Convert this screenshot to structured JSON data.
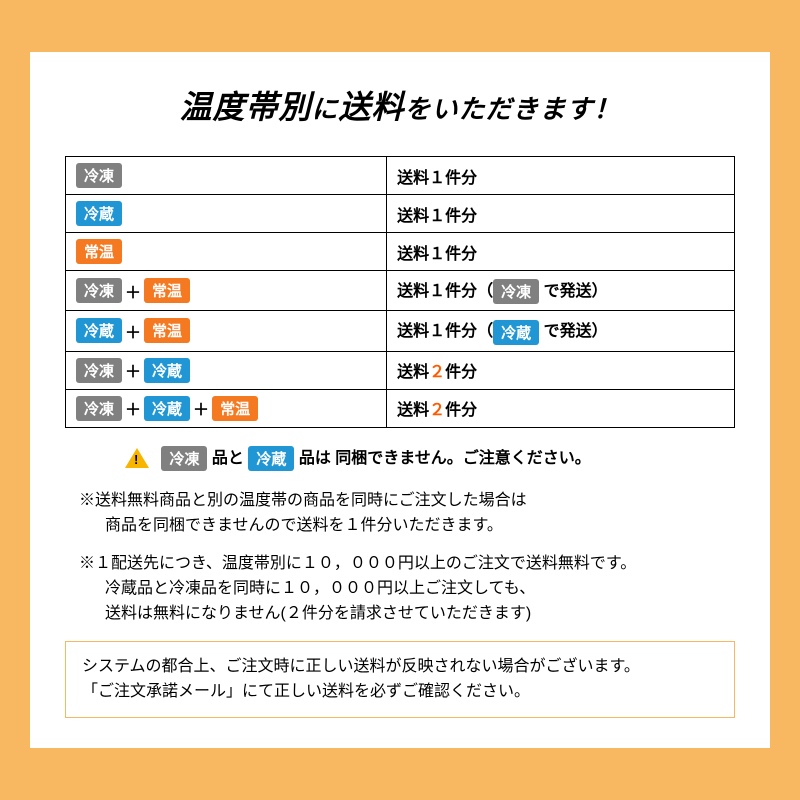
{
  "colors": {
    "page_bg": "#f8b862",
    "panel_bg": "#ffffff",
    "tag_gray": "#808080",
    "tag_blue": "#2196d4",
    "tag_orange": "#f47920",
    "count_red": "#ff5a00",
    "border": "#000000",
    "box_border": "#f8b862",
    "warn_triangle": "#f8b500"
  },
  "title": {
    "seg1": "温度帯別",
    "seg2": "に",
    "seg3": "送料",
    "seg4": "をいただきます！"
  },
  "tags": {
    "frozen": "冷凍",
    "chilled": "冷蔵",
    "ambient": "常温"
  },
  "table": {
    "plus": "＋",
    "rows": [
      {
        "l": [
          "gray"
        ],
        "r": "送料１件分"
      },
      {
        "l": [
          "blue"
        ],
        "r": "送料１件分"
      },
      {
        "l": [
          "orange"
        ],
        "r": "送料１件分"
      },
      {
        "l": [
          "gray",
          "orange"
        ],
        "r1": "送料１件分（",
        "rt": "gray",
        "r2": " で発送）"
      },
      {
        "l": [
          "blue",
          "orange"
        ],
        "r1": "送料１件分（",
        "rt": "blue",
        "r2": " で発送）"
      },
      {
        "l": [
          "gray",
          "blue"
        ],
        "r1": "送料",
        "rc": "２",
        "r2": "件分"
      },
      {
        "l": [
          "gray",
          "blue",
          "orange"
        ],
        "r1": "送料",
        "rc": "２",
        "r2": "件分"
      }
    ]
  },
  "warning": {
    "t1": " 品と ",
    "t2": " 品は 同梱できません。ご注意ください。"
  },
  "notes": [
    {
      "l1": "※送料無料商品と別の温度帯の商品を同時にご注文した場合は",
      "l2": "商品を同梱できませんので送料を１件分いただきます。"
    },
    {
      "l1": "※１配送先につき、温度帯別に１０，０００円以上のご注文で送料無料です。",
      "l2": "冷蔵品と冷凍品を同時に１０，０００円以上ご注文しても、",
      "l3": "送料は無料になりません(２件分を請求させていただきます)"
    }
  ],
  "box": {
    "l1": "システムの都合上、ご注文時に正しい送料が反映されない場合がございます。",
    "l2": "「ご注文承諾メール」にて正しい送料を必ずご確認ください。"
  }
}
